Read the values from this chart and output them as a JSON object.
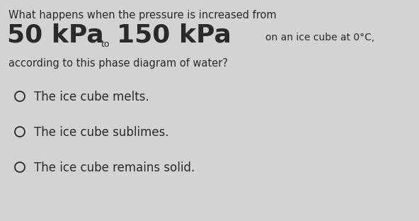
{
  "background_color": "#d3d3d3",
  "line1": "What happens when the pressure is increased from",
  "line2_part1": "50 kPa",
  "line2_sub1": "to",
  "line2_part2": "150 kPa",
  "line2_sub2": "on an ice cube at 0°C,",
  "line3": "according to this phase diagram of water?",
  "options": [
    "The ice cube melts.",
    "The ice cube sublimes.",
    "The ice cube remains solid."
  ],
  "text_color": "#2a2a2a",
  "small_font": 10.5,
  "large_font": 26,
  "option_font": 12
}
